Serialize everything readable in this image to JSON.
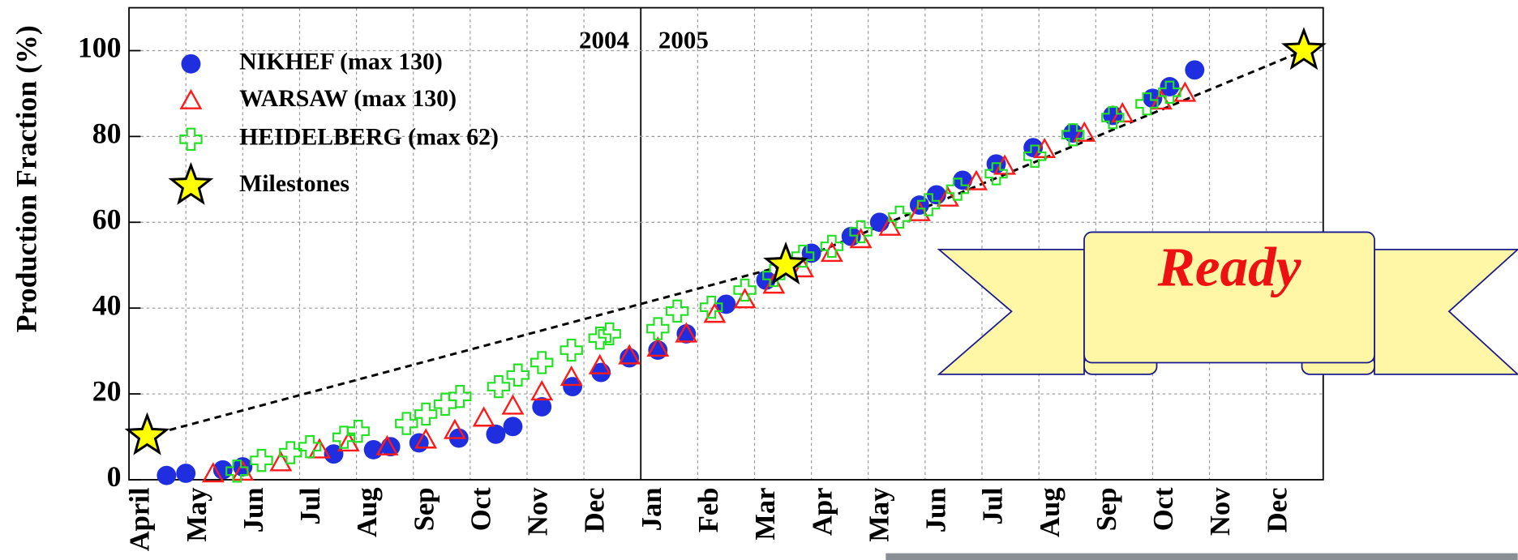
{
  "chart_data": {
    "type": "scatter",
    "y_label": "Production Fraction (%)",
    "categories": [
      "April",
      "May",
      "Jun",
      "Jul",
      "Aug",
      "Sep",
      "Oct",
      "Nov",
      "Dec",
      "Jan",
      "Feb",
      "Mar",
      "Apr",
      "May",
      "Jun",
      "Jul",
      "Aug",
      "Sep",
      "Oct",
      "Nov",
      "Dec"
    ],
    "years": [
      "2004",
      "2005"
    ],
    "xlim": [
      0,
      21
    ],
    "ylim": [
      0,
      110
    ],
    "yticks": [
      0,
      20,
      40,
      60,
      80,
      100
    ],
    "grid": true,
    "annotation": "Ready",
    "series": [
      {
        "name": "NIKHEF (max 130)",
        "color": "#1f2fe0",
        "marker": "circle",
        "x": [
          0.66,
          1.0,
          1.65,
          2.0,
          3.6,
          4.3,
          4.6,
          5.1,
          5.8,
          6.45,
          6.75,
          7.26,
          7.8,
          8.3,
          8.8,
          9.3,
          9.8,
          10.5,
          11.2,
          12.0,
          12.7,
          13.2,
          13.9,
          14.2,
          14.66,
          15.25,
          15.9,
          16.6,
          17.3,
          18.0,
          18.3,
          18.74
        ],
        "values": [
          1,
          1.5,
          2.3,
          3,
          6,
          7,
          7.7,
          8.6,
          9.7,
          10.6,
          12.4,
          17,
          21.7,
          25,
          28.4,
          30.2,
          34,
          40.9,
          46.5,
          52.8,
          56.7,
          60,
          64,
          66.4,
          69.8,
          73.6,
          77.4,
          80.8,
          84.9,
          88.9,
          91.6,
          95.5
        ]
      },
      {
        "name": "WARSAW (max 130)",
        "color": "#ff1a1a",
        "marker": "triangle",
        "x": [
          1.48,
          2.0,
          2.67,
          3.35,
          3.86,
          4.54,
          5.22,
          5.73,
          6.24,
          6.75,
          7.26,
          7.78,
          8.28,
          8.8,
          9.3,
          9.8,
          10.3,
          10.83,
          11.34,
          11.85,
          12.36,
          12.87,
          13.38,
          13.9,
          14.4,
          14.9,
          15.4,
          16.1,
          16.8,
          17.47,
          18.15,
          18.57
        ],
        "values": [
          1.4,
          1.8,
          4,
          7,
          8.6,
          7.7,
          9.3,
          11.5,
          14.4,
          17.2,
          20.5,
          23.9,
          26.6,
          28.9,
          30.7,
          34,
          38.6,
          42,
          45.4,
          49.2,
          52.8,
          56,
          58.9,
          62.3,
          65.7,
          69.5,
          73.1,
          77,
          80.8,
          85.3,
          88.3,
          90.1
        ]
      },
      {
        "name": "HEIDELBERG (max 62)",
        "color": "#22e022",
        "marker": "cross",
        "x": [
          1.9,
          2.33,
          2.84,
          3.18,
          3.78,
          4.03,
          4.88,
          5.22,
          5.56,
          5.82,
          6.5,
          6.84,
          7.26,
          7.78,
          8.28,
          8.45,
          9.3,
          9.64,
          10.24,
          10.83,
          11.34,
          11.85,
          12.36,
          12.87,
          13.55,
          14.06,
          14.57,
          15.25,
          15.93,
          16.6,
          17.3,
          17.9,
          18.3
        ],
        "values": [
          2,
          4.5,
          6.3,
          7.7,
          9.9,
          11.3,
          13.1,
          15.3,
          17.6,
          19.4,
          21.7,
          24.4,
          27.3,
          30.2,
          33,
          34,
          35.2,
          39.3,
          40.2,
          44.2,
          47.6,
          52.1,
          54.4,
          57.8,
          61.2,
          64.1,
          67.7,
          71.3,
          75.4,
          80.4,
          84.4,
          87.6,
          90.3
        ]
      },
      {
        "name": "Milestones",
        "color": "#ffff00",
        "marker": "star",
        "line_style": "dashed",
        "x": [
          0.32,
          11.55,
          20.66
        ],
        "values": [
          10.2,
          50,
          100
        ]
      }
    ]
  }
}
